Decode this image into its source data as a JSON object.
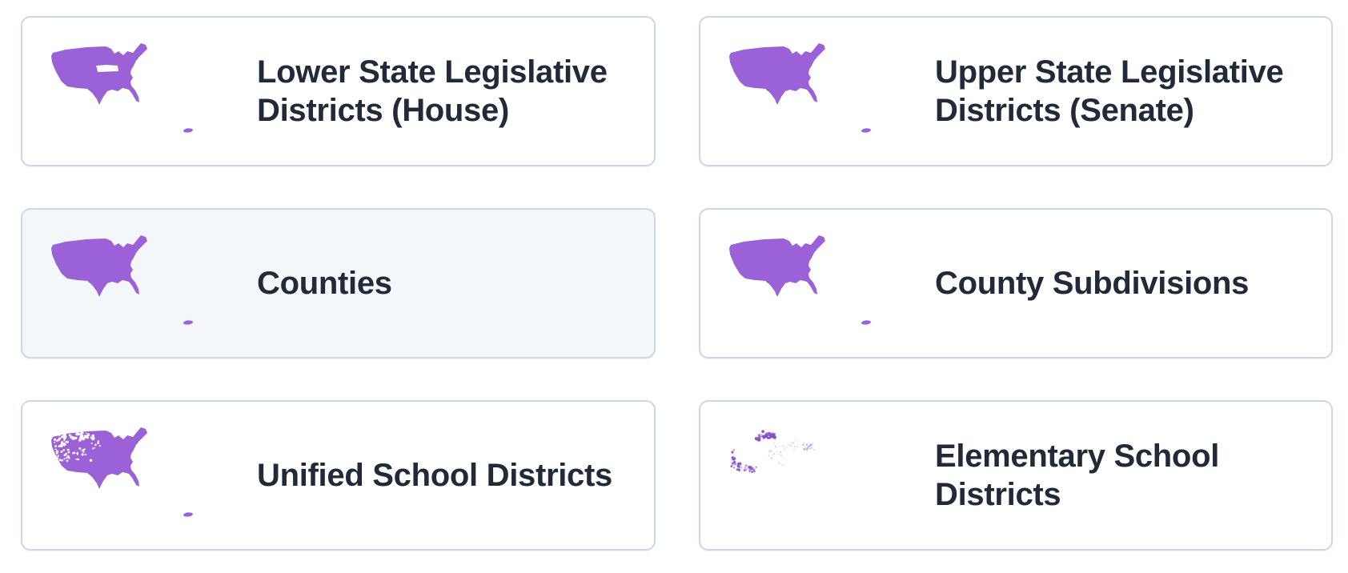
{
  "page": {
    "background": "#ffffff",
    "description": "Geography level picker with six dataset cards, each showing a purple US map thumbnail"
  },
  "theme": {
    "map_purple": "#9a62d6",
    "map_purple_dark": "#8650cc",
    "title_color": "#212a38",
    "card_border": "#cdd8e2",
    "card_bg": "#ffffff",
    "selected_card_bg": "#f3f7fa"
  },
  "cards": [
    {
      "id": "lower-state-legislative-districts",
      "title": "Lower State Legislative Districts (House)",
      "map_icon": "us-map-icon",
      "map_variant": "solid-with-hole",
      "selected": false
    },
    {
      "id": "upper-state-legislative-districts",
      "title": "Upper State Legislative Districts (Senate)",
      "map_icon": "us-map-icon",
      "map_variant": "solid",
      "selected": false
    },
    {
      "id": "counties",
      "title": "Counties",
      "map_icon": "us-map-icon",
      "map_variant": "solid",
      "selected": true
    },
    {
      "id": "county-subdivisions",
      "title": "County Subdivisions",
      "map_icon": "us-map-icon",
      "map_variant": "solid",
      "selected": false
    },
    {
      "id": "unified-school-districts",
      "title": "Unified School Districts",
      "map_icon": "us-map-icon",
      "map_variant": "speckled-holes",
      "selected": false
    },
    {
      "id": "elementary-school-districts",
      "title": "Elementary School Districts",
      "map_icon": "us-map-icon",
      "map_variant": "sparse-dots",
      "selected": false
    }
  ]
}
